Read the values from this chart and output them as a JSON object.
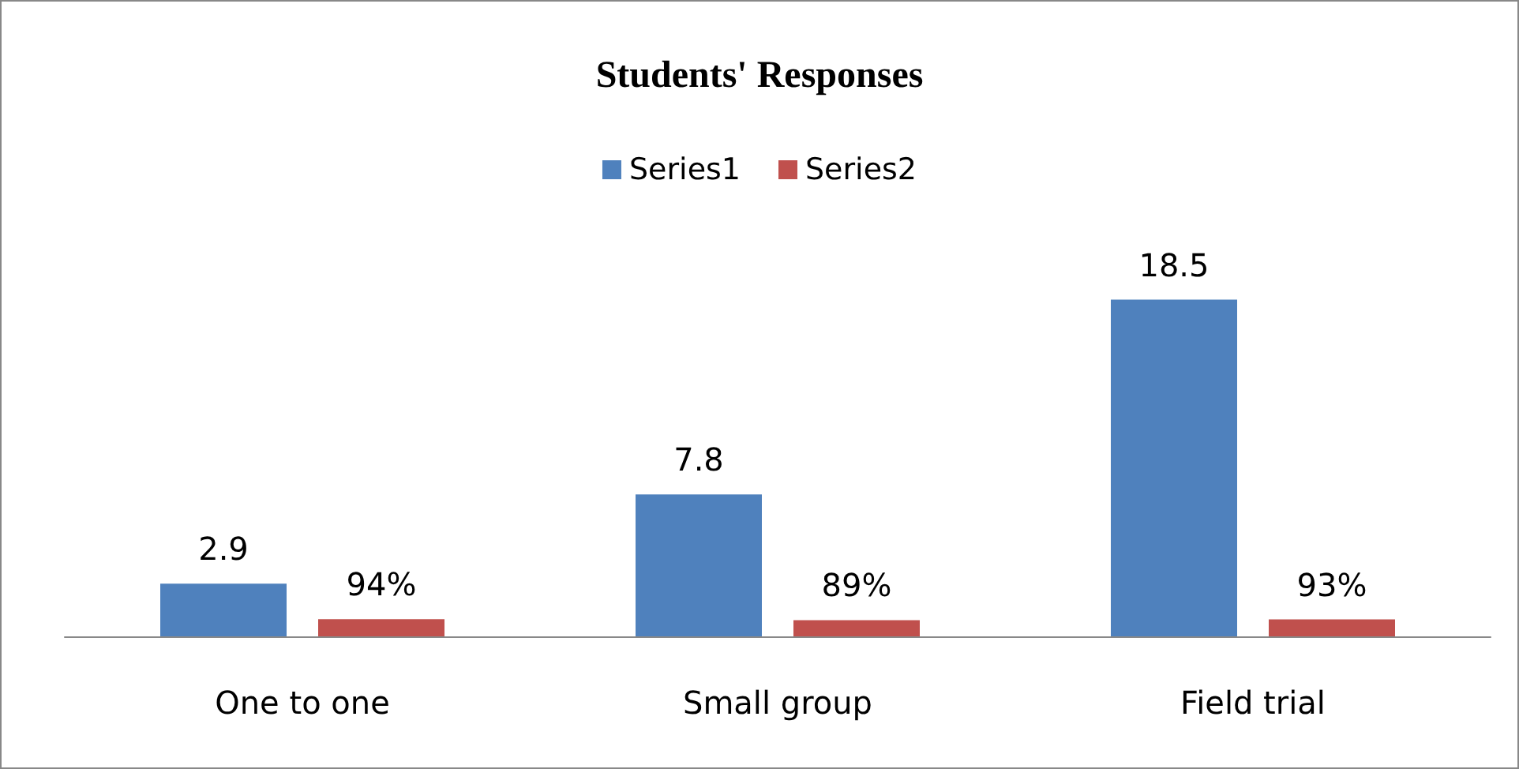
{
  "chart_data": {
    "type": "bar",
    "title": "Students' Responses",
    "categories": [
      "One to one",
      "Small group",
      "Field trial"
    ],
    "series": [
      {
        "name": "Series1",
        "color": "#4f81bd",
        "values": [
          2.9,
          7.8,
          18.5
        ],
        "value_labels": [
          "2.9",
          "7.8",
          "18.5"
        ]
      },
      {
        "name": "Series2",
        "color": "#c0504d",
        "values": [
          0.94,
          0.89,
          0.93
        ],
        "value_labels": [
          "94%",
          "89%",
          "93%"
        ]
      }
    ],
    "legend": "top",
    "grid": false
  }
}
